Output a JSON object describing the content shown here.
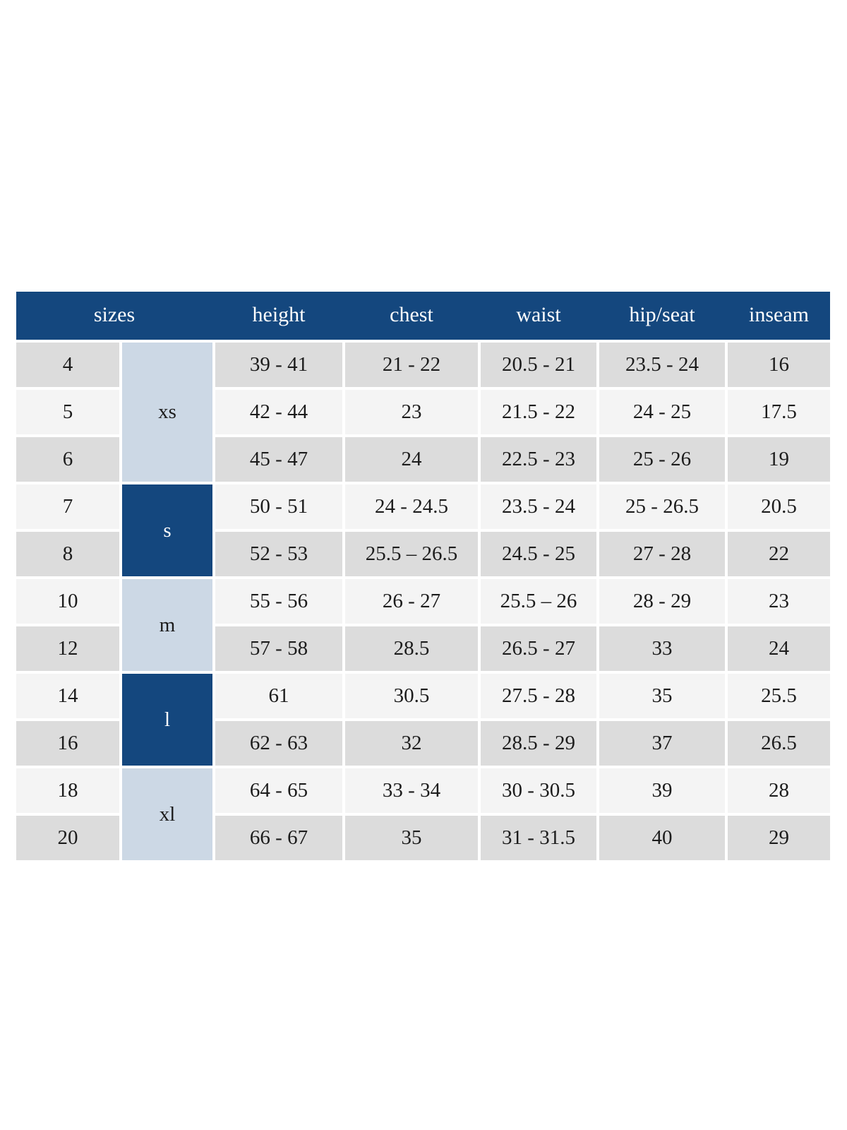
{
  "table": {
    "header": {
      "sizes_label": "sizes",
      "columns": [
        "height",
        "chest",
        "waist",
        "hip/seat",
        "inseam"
      ]
    },
    "size_groups": [
      {
        "label": "xs",
        "rows": 3,
        "style": "light"
      },
      {
        "label": "s",
        "rows": 2,
        "style": "dark"
      },
      {
        "label": "m",
        "rows": 2,
        "style": "light"
      },
      {
        "label": "l",
        "rows": 2,
        "style": "dark"
      },
      {
        "label": "xl",
        "rows": 2,
        "style": "light"
      }
    ],
    "rows": [
      {
        "size": "4",
        "height": "39 - 41",
        "chest": "21 - 22",
        "waist": "20.5 - 21",
        "hip_seat": "23.5 - 24",
        "inseam": "16"
      },
      {
        "size": "5",
        "height": "42 - 44",
        "chest": "23",
        "waist": "21.5 - 22",
        "hip_seat": "24 - 25",
        "inseam": "17.5"
      },
      {
        "size": "6",
        "height": "45 - 47",
        "chest": "24",
        "waist": "22.5 - 23",
        "hip_seat": "25 - 26",
        "inseam": "19"
      },
      {
        "size": "7",
        "height": "50 - 51",
        "chest": "24 - 24.5",
        "waist": "23.5 - 24",
        "hip_seat": "25 - 26.5",
        "inseam": "20.5"
      },
      {
        "size": "8",
        "height": "52 - 53",
        "chest": "25.5 – 26.5",
        "waist": "24.5 - 25",
        "hip_seat": "27 - 28",
        "inseam": "22"
      },
      {
        "size": "10",
        "height": "55 - 56",
        "chest": "26 - 27",
        "waist": "25.5 – 26",
        "hip_seat": "28 - 29",
        "inseam": "23"
      },
      {
        "size": "12",
        "height": "57 - 58",
        "chest": "28.5",
        "waist": "26.5 - 27",
        "hip_seat": "33",
        "inseam": "24"
      },
      {
        "size": "14",
        "height": "61",
        "chest": "30.5",
        "waist": "27.5 - 28",
        "hip_seat": "35",
        "inseam": "25.5"
      },
      {
        "size": "16",
        "height": "62 - 63",
        "chest": "32",
        "waist": "28.5 - 29",
        "hip_seat": "37",
        "inseam": "26.5"
      },
      {
        "size": "18",
        "height": "64 - 65",
        "chest": "33 - 34",
        "waist": "30 - 30.5",
        "hip_seat": "39",
        "inseam": "28"
      },
      {
        "size": "20",
        "height": "66 - 67",
        "chest": "35",
        "waist": "31 - 31.5",
        "hip_seat": "40",
        "inseam": "29"
      }
    ],
    "colors": {
      "page_bg": "#ffffff",
      "header_bg": "#14477e",
      "dark_cell_bg": "#14477e",
      "light_cell_bg": "#ccd8e5",
      "row_odd_bg": "#dcdcdc",
      "row_even_bg": "#f4f4f4",
      "header_text": "#ffffff",
      "body_text": "#1c1c1c"
    }
  }
}
